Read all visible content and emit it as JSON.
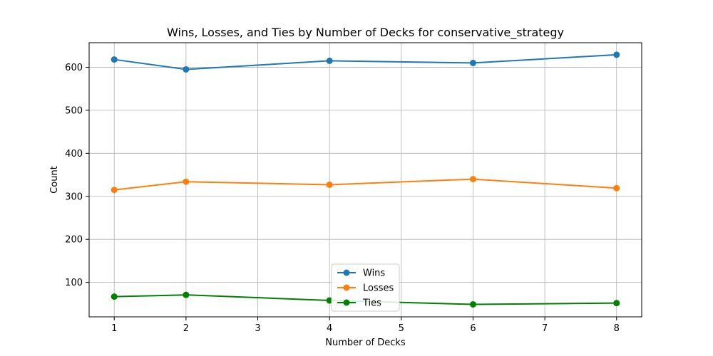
{
  "chart_data": {
    "type": "line",
    "title": "Wins, Losses, and Ties by Number of Decks for conservative_strategy",
    "xlabel": "Number of Decks",
    "ylabel": "Count",
    "x": [
      1,
      2,
      4,
      6,
      8
    ],
    "xticks": [
      1,
      2,
      3,
      4,
      5,
      6,
      7,
      8
    ],
    "yticks": [
      100,
      200,
      300,
      400,
      500,
      600
    ],
    "xlim": [
      0.65,
      8.35
    ],
    "ylim": [
      20,
      657
    ],
    "grid": true,
    "legend_position": "bottom-center",
    "series": [
      {
        "name": "Wins",
        "color": "#1f77b4",
        "values": [
          618,
          595,
          615,
          610,
          629
        ]
      },
      {
        "name": "Losses",
        "color": "#ff7f0e",
        "values": [
          315,
          334,
          327,
          340,
          319
        ]
      },
      {
        "name": "Ties",
        "color": "#008000",
        "values": [
          67,
          71,
          58,
          49,
          52
        ]
      }
    ]
  }
}
